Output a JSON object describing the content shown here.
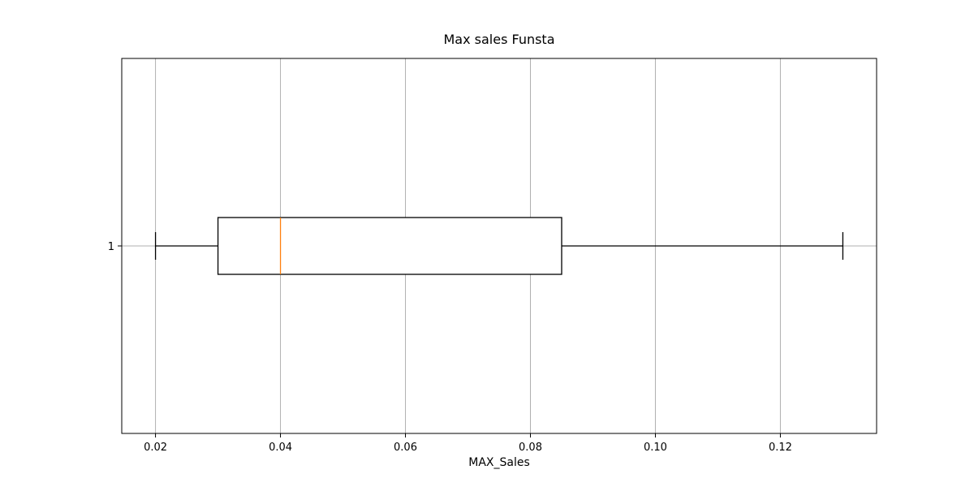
{
  "chart_data": {
    "type": "boxplot",
    "orientation": "horizontal",
    "title": "Max sales Funsta",
    "xlabel": "MAX_Sales",
    "ylabel": "",
    "xlim": [
      0.0146,
      0.1354
    ],
    "x_ticks": [
      0.02,
      0.04,
      0.06,
      0.08,
      0.1,
      0.12
    ],
    "x_tick_labels": [
      "0.02",
      "0.04",
      "0.06",
      "0.08",
      "0.10",
      "0.12"
    ],
    "y_tick_labels": [
      "1"
    ],
    "grid": true,
    "boxes": [
      {
        "label": "1",
        "whisker_low": 0.02,
        "q1": 0.03,
        "median": 0.04,
        "q3": 0.085,
        "whisker_high": 0.13
      }
    ],
    "colors": {
      "box": "#000000",
      "median": "#ff7f0e",
      "grid": "#b0b0b0",
      "axes": "#000000"
    }
  }
}
